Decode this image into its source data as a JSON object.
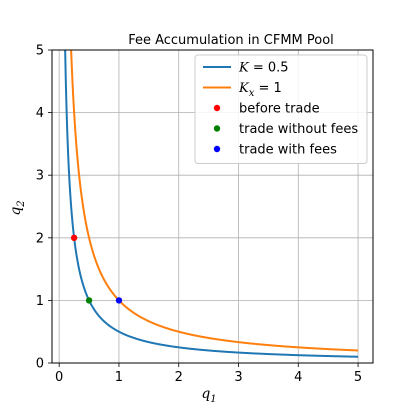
{
  "chart_data": {
    "type": "line",
    "title": "Fee Accumulation in CFMM Pool",
    "xlabel": {
      "base": "q",
      "sub": "1"
    },
    "ylabel": {
      "base": "q",
      "sub": "2"
    },
    "xlim": [
      -0.12,
      5.25
    ],
    "ylim": [
      0,
      5
    ],
    "xticks": [
      0,
      1,
      2,
      3,
      4,
      5
    ],
    "yticks": [
      0,
      1,
      2,
      3,
      4,
      5
    ],
    "grid": true,
    "legend_position": "top-right",
    "series": [
      {
        "name": "K = 0.5",
        "legend_base": "K",
        "legend_sub": "",
        "legend_rest": " = 0.5",
        "kind": "curve",
        "k": 0.5,
        "x_range": [
          0.1,
          5
        ],
        "color": "#1f77b4"
      },
      {
        "name": "K_x = 1",
        "legend_base": "K",
        "legend_sub": "x",
        "legend_rest": " = 1",
        "kind": "curve",
        "k": 1,
        "x_range": [
          0.2,
          5
        ],
        "color": "#ff7f0e"
      },
      {
        "name": "before trade",
        "kind": "point",
        "x": 0.25,
        "y": 2,
        "color": "#ff0000"
      },
      {
        "name": "trade without fees",
        "kind": "point",
        "x": 0.5,
        "y": 1,
        "color": "#008000"
      },
      {
        "name": "trade with fees",
        "kind": "point",
        "x": 1,
        "y": 1,
        "color": "#0000ff"
      }
    ]
  }
}
